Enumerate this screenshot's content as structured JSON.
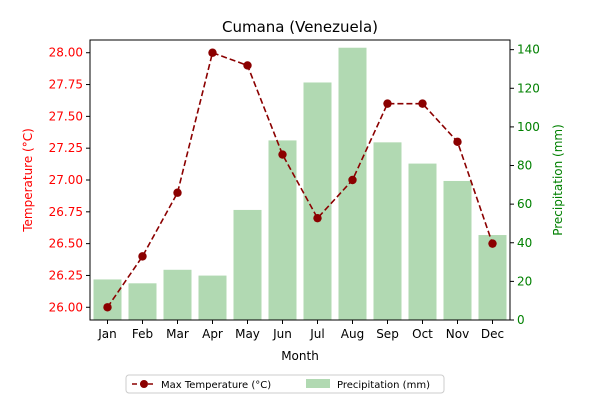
{
  "chart_data": {
    "type": "bar+line",
    "title": "Cumana (Venezuela)",
    "xlabel": "Month",
    "categories": [
      "Jan",
      "Feb",
      "Mar",
      "Apr",
      "May",
      "Jun",
      "Jul",
      "Aug",
      "Sep",
      "Oct",
      "Nov",
      "Dec"
    ],
    "left_axis": {
      "label": "Temperature (°C)",
      "color": "#ff0000",
      "ylim": [
        25.9,
        28.1
      ],
      "ticks": [
        "26.00",
        "26.25",
        "26.50",
        "26.75",
        "27.00",
        "27.25",
        "27.50",
        "27.75",
        "28.00"
      ]
    },
    "right_axis": {
      "label": "Precipitation (mm)",
      "color": "#008000",
      "ylim": [
        0,
        145
      ],
      "ticks": [
        "0",
        "20",
        "40",
        "60",
        "80",
        "100",
        "120",
        "140"
      ]
    },
    "series": [
      {
        "name": "Max Temperature (°C)",
        "type": "line",
        "axis": "left",
        "color": "#8b0000",
        "style": "dashed with circle markers",
        "values": [
          26.0,
          26.4,
          26.9,
          28.0,
          27.9,
          27.2,
          26.7,
          27.0,
          27.6,
          27.6,
          27.3,
          26.5
        ]
      },
      {
        "name": "Precipitation (mm)",
        "type": "bar",
        "axis": "right",
        "color": "#b1d9b2",
        "values": [
          21,
          19,
          26,
          23,
          57,
          93,
          123,
          141,
          92,
          81,
          72,
          44
        ]
      }
    ],
    "legend_position": "bottom-center",
    "grid": false
  }
}
